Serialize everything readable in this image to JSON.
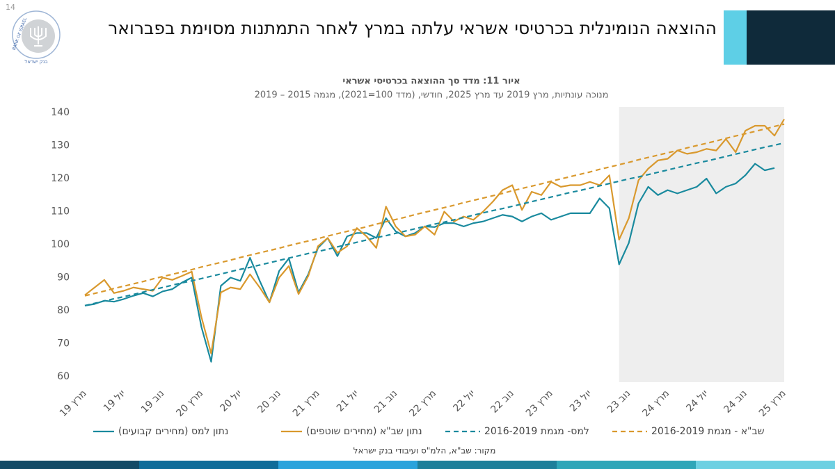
{
  "page_number": "14",
  "header": {
    "title": "ההוצאה הנומינלית בכרטיסי אשראי עלתה במרץ לאחר התמתנות מסוימת בפברואר",
    "logo_text": "BANK OF ISRAEL",
    "logo_text_he": "בנק ישראל"
  },
  "source": "מקור: שב\"א, הלמ\"ס ועיבודי בנק ישראל",
  "chart_data": {
    "type": "line",
    "title": "איור 11: מדד סך ההוצאה בכרטיסי אשראי",
    "subtitle": "מנוכה עונתיות, מרץ 2019 עד מרץ 2025, חודשי, (מדד 100=2021), מגמה 2015 – 2019",
    "categories": [
      "מרץ 19",
      null,
      null,
      null,
      "יול 19",
      null,
      null,
      null,
      "נוב 19",
      null,
      null,
      null,
      "מרץ 20",
      null,
      null,
      null,
      "יול 20",
      null,
      null,
      null,
      "נוב 20",
      null,
      null,
      null,
      "מרץ 21",
      null,
      null,
      null,
      "יול 21",
      null,
      null,
      null,
      "נוב 21",
      null,
      null,
      null,
      "מרץ 22",
      null,
      null,
      null,
      "יול 22",
      null,
      null,
      null,
      "נוב 22",
      null,
      null,
      null,
      "מרץ 23",
      null,
      null,
      null,
      "יול 23",
      null,
      null,
      null,
      "נוב 23",
      null,
      null,
      null,
      "מרץ 24",
      null,
      null,
      null,
      "יול 24",
      null,
      null,
      null,
      "נוב 24",
      null,
      null,
      null,
      "מרץ 25"
    ],
    "ylim": [
      60,
      140
    ],
    "yticks": [
      60,
      70,
      80,
      90,
      100,
      110,
      120,
      130,
      140
    ],
    "grid": false,
    "highlight_range": [
      55,
      72
    ],
    "highlight_color": "#eeeeee",
    "series": [
      {
        "name": "נתון למס (מחירים קבועים)",
        "color": "#1a8a9e",
        "dash": false,
        "values": [
          81.5,
          82,
          83,
          82.7,
          83.5,
          84.5,
          85.3,
          84.3,
          85.8,
          86.5,
          88.5,
          90,
          75,
          64.5,
          87.5,
          90,
          89,
          96,
          89,
          82.5,
          92,
          95.8,
          85.5,
          91,
          99,
          102,
          96.5,
          102.5,
          103.5,
          103.5,
          102,
          108,
          104,
          102.5,
          103.5,
          105.5,
          105.3,
          106.5,
          106.5,
          105.5,
          106.5,
          107,
          108,
          109,
          108.5,
          107,
          108.5,
          109.5,
          107.5,
          108.5,
          109.5,
          109.5,
          109.5,
          114,
          111,
          94,
          100.5,
          112.5,
          117.5,
          115,
          116.5,
          115.5,
          116.5,
          117.5,
          120,
          115.5,
          117.5,
          118.5,
          121,
          124.5,
          122.5,
          123.2,
          null
        ]
      },
      {
        "name": "נתון שב\"א (מחירים שוטפים)",
        "color": "#d9992e",
        "dash": false,
        "values": [
          84.7,
          87,
          89.3,
          85.3,
          86,
          87,
          86.5,
          86,
          90,
          89.3,
          90.5,
          91.8,
          78,
          67,
          85.5,
          87,
          86.5,
          91,
          87,
          82.5,
          90,
          93.5,
          85,
          90.5,
          99.5,
          102,
          97.5,
          99.5,
          105,
          102.5,
          99,
          111.5,
          105.5,
          102.5,
          103,
          105.5,
          103,
          110,
          107,
          108.5,
          107.5,
          110,
          113,
          116.5,
          118,
          110.5,
          116,
          115,
          119,
          117.5,
          118,
          118,
          119,
          118,
          121,
          101.5,
          108,
          119.5,
          123,
          125.5,
          126,
          128.5,
          127.5,
          128,
          129,
          128.5,
          132,
          128,
          134.5,
          136,
          136,
          133,
          138
        ]
      },
      {
        "name": "למס- מגמת 2016-2019",
        "color": "#1a8a9e",
        "dash": true,
        "values": [
          81.5,
          82.2,
          82.9,
          83.6,
          84.2,
          84.9,
          85.6,
          86.3,
          87.0,
          87.7,
          88.4,
          89.0,
          89.7,
          90.4,
          91.1,
          91.8,
          92.5,
          93.1,
          93.8,
          94.5,
          95.2,
          95.9,
          96.6,
          97.3,
          97.9,
          98.6,
          99.3,
          100.0,
          100.7,
          101.4,
          102.1,
          102.7,
          103.4,
          104.1,
          104.8,
          105.5,
          106.2,
          106.8,
          107.5,
          108.2,
          108.9,
          109.6,
          110.3,
          110.9,
          111.6,
          112.3,
          113.0,
          113.7,
          114.4,
          115.1,
          115.8,
          116.4,
          117.1,
          117.8,
          118.5,
          119.2,
          119.9,
          120.5,
          121.2,
          121.9,
          122.6,
          123.3,
          124.0,
          124.7,
          125.3,
          126.0,
          126.7,
          127.4,
          128.1,
          128.8,
          129.5,
          130.1,
          130.8
        ]
      },
      {
        "name": "שב\"א - מגמת 2016-2019",
        "color": "#d9992e",
        "dash": true,
        "values": [
          84.5,
          85.2,
          85.9,
          86.7,
          87.4,
          88.1,
          88.8,
          89.6,
          90.3,
          91.0,
          91.7,
          92.4,
          93.2,
          93.9,
          94.6,
          95.3,
          96.1,
          96.8,
          97.5,
          98.2,
          98.9,
          99.7,
          100.4,
          101.1,
          101.8,
          102.6,
          103.3,
          104.0,
          104.7,
          105.4,
          106.2,
          106.9,
          107.6,
          108.3,
          109.1,
          109.8,
          110.5,
          111.2,
          111.9,
          112.7,
          113.4,
          114.1,
          114.8,
          115.5,
          116.3,
          117.0,
          117.7,
          118.4,
          119.2,
          119.9,
          120.6,
          121.3,
          122.0,
          122.8,
          123.5,
          124.2,
          124.9,
          125.7,
          126.4,
          127.1,
          127.8,
          128.5,
          129.3,
          130.0,
          130.7,
          131.4,
          132.2,
          132.9,
          133.6,
          134.3,
          135.0,
          135.8,
          136.5
        ]
      }
    ]
  }
}
